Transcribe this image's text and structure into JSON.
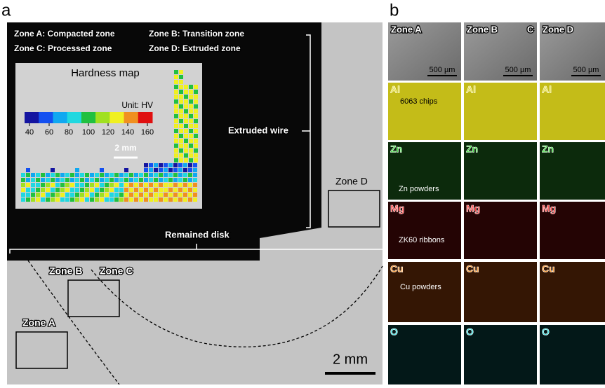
{
  "panel_a": {
    "label": "a",
    "legend": [
      "Zone A: Compacted zone",
      "Zone B: Transition zone",
      "Zone C: Processed zone",
      "Zone D: Extruded zone"
    ],
    "hardness_map": {
      "title": "Hardness map",
      "unit": "Unit: HV",
      "scale_bar": "2 mm",
      "colorbar": {
        "lim": [
          35,
          165
        ],
        "ticks": [
          40,
          60,
          80,
          100,
          120,
          140,
          160
        ],
        "colors": [
          "#1414a0",
          "#1450f0",
          "#10a8f0",
          "#20d8e0",
          "#20c040",
          "#a0e020",
          "#f0f020",
          "#f09020",
          "#e01010"
        ]
      }
    },
    "extruded_wire": "Extruded wire",
    "remained_disk": "Remained disk",
    "zone_a": "Zone A",
    "zone_b": "Zone B",
    "zone_c": "Zone C",
    "zone_d": "Zone D",
    "scale_bar": "2 mm"
  },
  "panel_b": {
    "label": "b",
    "columns": [
      {
        "title": "Zone A",
        "scale": "500 µm"
      },
      {
        "title": "Zone B",
        "extra": "C",
        "scale": "500 µm"
      },
      {
        "title": "Zone D",
        "scale": "500 µm"
      }
    ],
    "rows": [
      {
        "element": "Al",
        "color": "#e8e040",
        "background": "#c4bc18"
      },
      {
        "element": "Zn",
        "color": "#40e040",
        "background": "#0c2a0c"
      },
      {
        "element": "Mg",
        "color": "#ff3030",
        "background": "#240404"
      },
      {
        "element": "Cu",
        "color": "#ff9a30",
        "background": "#341604"
      },
      {
        "element": "O",
        "color": "#40e0e0",
        "background": "#031818"
      }
    ],
    "annotations": [
      "6063 chips",
      "Zn powders",
      "ZK60 ribbons",
      "Cu powders"
    ]
  }
}
